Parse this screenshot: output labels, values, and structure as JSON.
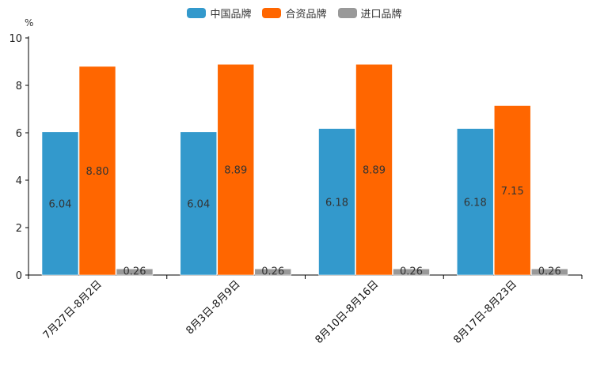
{
  "chart_data": {
    "type": "bar",
    "unit": "%",
    "categories": [
      "7月27日-8月2日",
      "8月3日-8月9日",
      "8月10日-8月16日",
      "8月17日-8月23日"
    ],
    "series": [
      {
        "name": "中国品牌",
        "color": "#3399cc",
        "values": [
          6.04,
          6.04,
          6.18,
          6.18
        ],
        "labels": [
          "6.04",
          "6.04",
          "6.18",
          "6.18"
        ]
      },
      {
        "name": "合资品牌",
        "color": "#ff6600",
        "values": [
          8.8,
          8.89,
          8.89,
          7.15
        ],
        "labels": [
          "8.80",
          "8.89",
          "8.89",
          "7.15"
        ]
      },
      {
        "name": "进口品牌",
        "color": "#999999",
        "values": [
          0.26,
          0.26,
          0.26,
          0.26
        ],
        "labels": [
          "0.26",
          "0.26",
          "0.26",
          "0.26"
        ]
      }
    ],
    "yticks": [
      "0",
      "2",
      "4",
      "6",
      "8",
      "10"
    ],
    "ylim": [
      0,
      10
    ],
    "legend_position": "top-center",
    "grid": false
  }
}
